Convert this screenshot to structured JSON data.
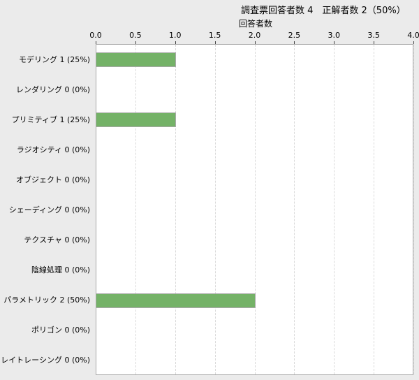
{
  "page": {
    "background": "#ebebeb"
  },
  "header": {
    "title": "調査票回答者数 4　正解者数 2（50%）"
  },
  "chart_data": {
    "type": "bar",
    "orientation": "horizontal",
    "title": "調査票回答者数 4　正解者数 2（50%）",
    "xlabel": "回答者数",
    "ylabel": "",
    "xlim": [
      0,
      4
    ],
    "x_ticks": [
      "0.0",
      "0.5",
      "1.0",
      "1.5",
      "2.0",
      "2.5",
      "3.0",
      "3.5",
      "4.0"
    ],
    "grid": "vertical dashed",
    "legend": "none",
    "bar_color": "#74b267",
    "bar_border_color": "#a9a9a9",
    "plot_background": "#ffffff",
    "categories": [
      {
        "label": "モデリング",
        "value": 1,
        "pct": "25%"
      },
      {
        "label": "レンダリング",
        "value": 0,
        "pct": "0%"
      },
      {
        "label": "プリミティブ",
        "value": 1,
        "pct": "25%"
      },
      {
        "label": "ラジオシティ",
        "value": 0,
        "pct": "0%"
      },
      {
        "label": "オブジェクト",
        "value": 0,
        "pct": "0%"
      },
      {
        "label": "シェーディング",
        "value": 0,
        "pct": "0%"
      },
      {
        "label": "テクスチャ",
        "value": 0,
        "pct": "0%"
      },
      {
        "label": "陰線処理",
        "value": 0,
        "pct": "0%"
      },
      {
        "label": "パラメトリック",
        "value": 2,
        "pct": "50%"
      },
      {
        "label": "ポリゴン",
        "value": 0,
        "pct": "0%"
      },
      {
        "label": "レイトレーシング",
        "value": 0,
        "pct": "0%"
      }
    ]
  }
}
